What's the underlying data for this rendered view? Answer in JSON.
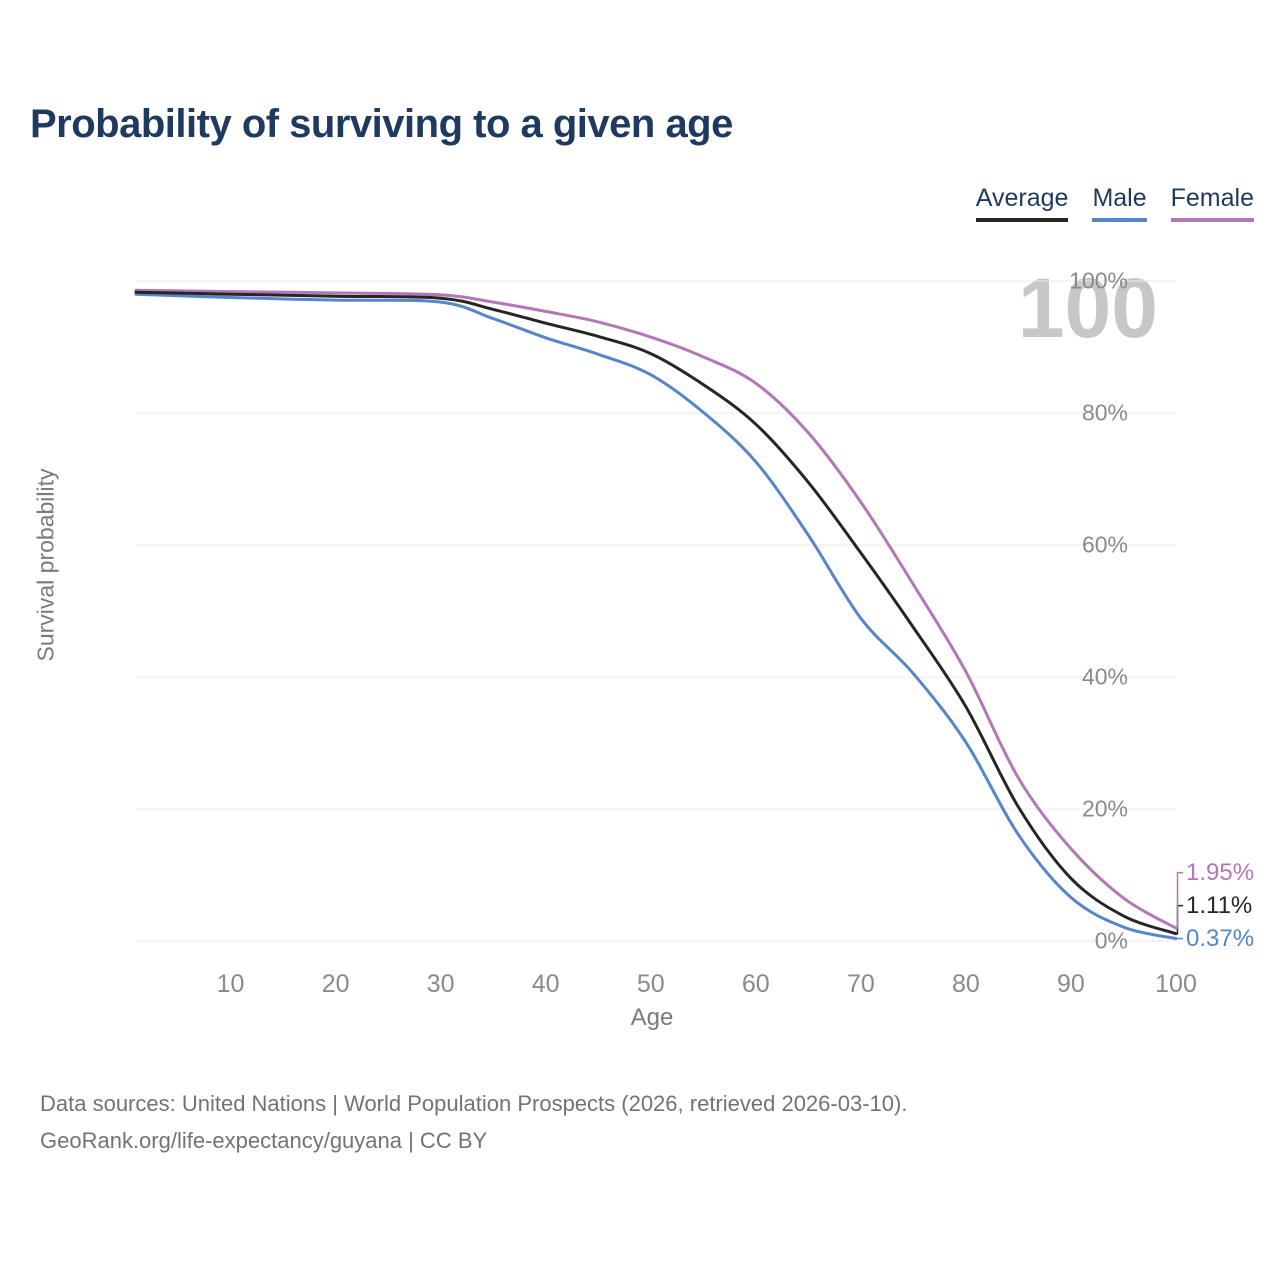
{
  "title": "Probability of surviving to a given age",
  "legend": {
    "items": [
      {
        "label": "Average",
        "color": "#262626"
      },
      {
        "label": "Male",
        "color": "#5585cb"
      },
      {
        "label": "Female",
        "color": "#b377b8"
      }
    ]
  },
  "chart_data": {
    "type": "line",
    "title": "Probability of surviving to a given age",
    "xlabel": "Age",
    "ylabel": "Survival probability",
    "xlim": [
      1,
      100
    ],
    "ylim": [
      0,
      100
    ],
    "x_ticks": [
      10,
      20,
      30,
      40,
      50,
      60,
      70,
      80,
      90,
      100
    ],
    "y_ticks": [
      "0%",
      "20%",
      "40%",
      "60%",
      "80%",
      "100%"
    ],
    "grid": "horizontal",
    "legend_position": "top-right",
    "age_indicator": "100",
    "x": [
      1,
      10,
      20,
      30,
      35,
      40,
      45,
      50,
      55,
      60,
      65,
      70,
      75,
      80,
      85,
      90,
      95,
      100
    ],
    "series": [
      {
        "name": "Female",
        "color": "#b377b8",
        "values": [
          98.6,
          98.4,
          98.2,
          97.9,
          96.8,
          95.4,
          93.8,
          91.5,
          88.5,
          84.5,
          77.0,
          66.5,
          54.0,
          40.8,
          24.7,
          14.0,
          6.5,
          1.95
        ]
      },
      {
        "name": "Male",
        "color": "#5585cb",
        "values": [
          98.0,
          97.5,
          97.1,
          96.8,
          94.3,
          91.4,
          88.9,
          85.8,
          80.1,
          72.6,
          61.5,
          48.9,
          40.5,
          30.1,
          16.1,
          6.6,
          2.1,
          0.37
        ]
      },
      {
        "name": "Average",
        "color": "#262626",
        "values": [
          98.3,
          98.0,
          97.7,
          97.4,
          95.7,
          93.6,
          91.6,
          89.0,
          84.3,
          78.3,
          69.5,
          58.8,
          47.5,
          35.5,
          20.3,
          9.5,
          3.8,
          1.11
        ]
      }
    ],
    "end_labels": [
      {
        "series": "Female",
        "text": "1.95%"
      },
      {
        "series": "Average",
        "text": "1.11%"
      },
      {
        "series": "Male",
        "text": "0.37%"
      }
    ]
  },
  "footer": {
    "line1": "Data sources: United Nations | World Population Prospects (2026, retrieved 2026-03-10).",
    "line2": "GeoRank.org/life-expectancy/guyana | CC BY"
  }
}
